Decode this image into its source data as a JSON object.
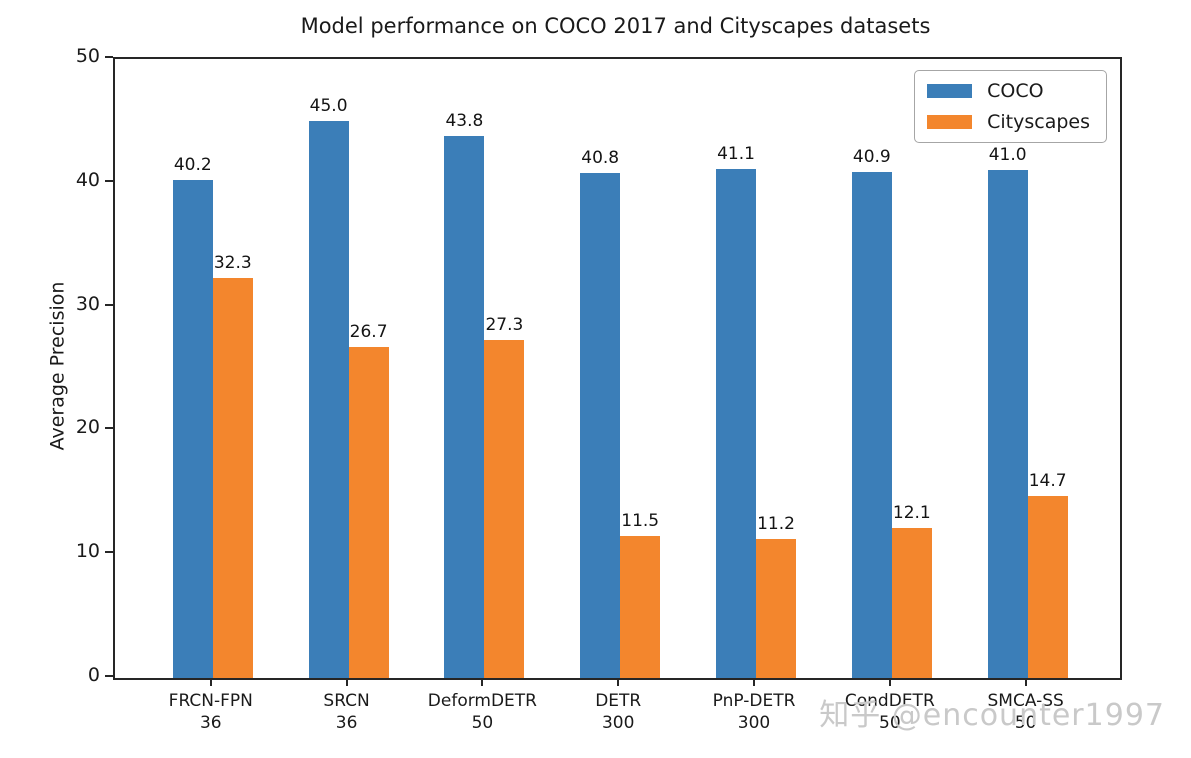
{
  "title": "Model performance on COCO 2017 and Cityscapes datasets",
  "watermark": "知乎 @encounter1997",
  "chart_data": {
    "type": "bar",
    "title": "Model performance on COCO 2017 and Cityscapes datasets",
    "xlabel": "",
    "ylabel": "Average Precision",
    "ylim": [
      0,
      50
    ],
    "yticks": [
      "0",
      "10",
      "20",
      "30",
      "40",
      "50"
    ],
    "grid": false,
    "legend_position": "upper right",
    "categories": [
      {
        "model": "FRCN-FPN",
        "epochs": "36"
      },
      {
        "model": "SRCN",
        "epochs": "36"
      },
      {
        "model": "DeformDETR",
        "epochs": "50"
      },
      {
        "model": "DETR",
        "epochs": "300"
      },
      {
        "model": "PnP-DETR",
        "epochs": "300"
      },
      {
        "model": "CondDETR",
        "epochs": "50"
      },
      {
        "model": "SMCA-SS",
        "epochs": "50"
      }
    ],
    "series": [
      {
        "name": "COCO",
        "color": "#3b7eb8",
        "values": [
          40.2,
          45.0,
          43.8,
          40.8,
          41.1,
          40.9,
          41.0
        ],
        "labels": [
          "40.2",
          "45.0",
          "43.8",
          "40.8",
          "41.1",
          "40.9",
          "41.0"
        ]
      },
      {
        "name": "Cityscapes",
        "color": "#f3862d",
        "values": [
          32.3,
          26.7,
          27.3,
          11.5,
          11.2,
          12.1,
          14.7
        ],
        "labels": [
          "32.3",
          "26.7",
          "27.3",
          "11.5",
          "11.2",
          "12.1",
          "14.7"
        ]
      }
    ]
  }
}
